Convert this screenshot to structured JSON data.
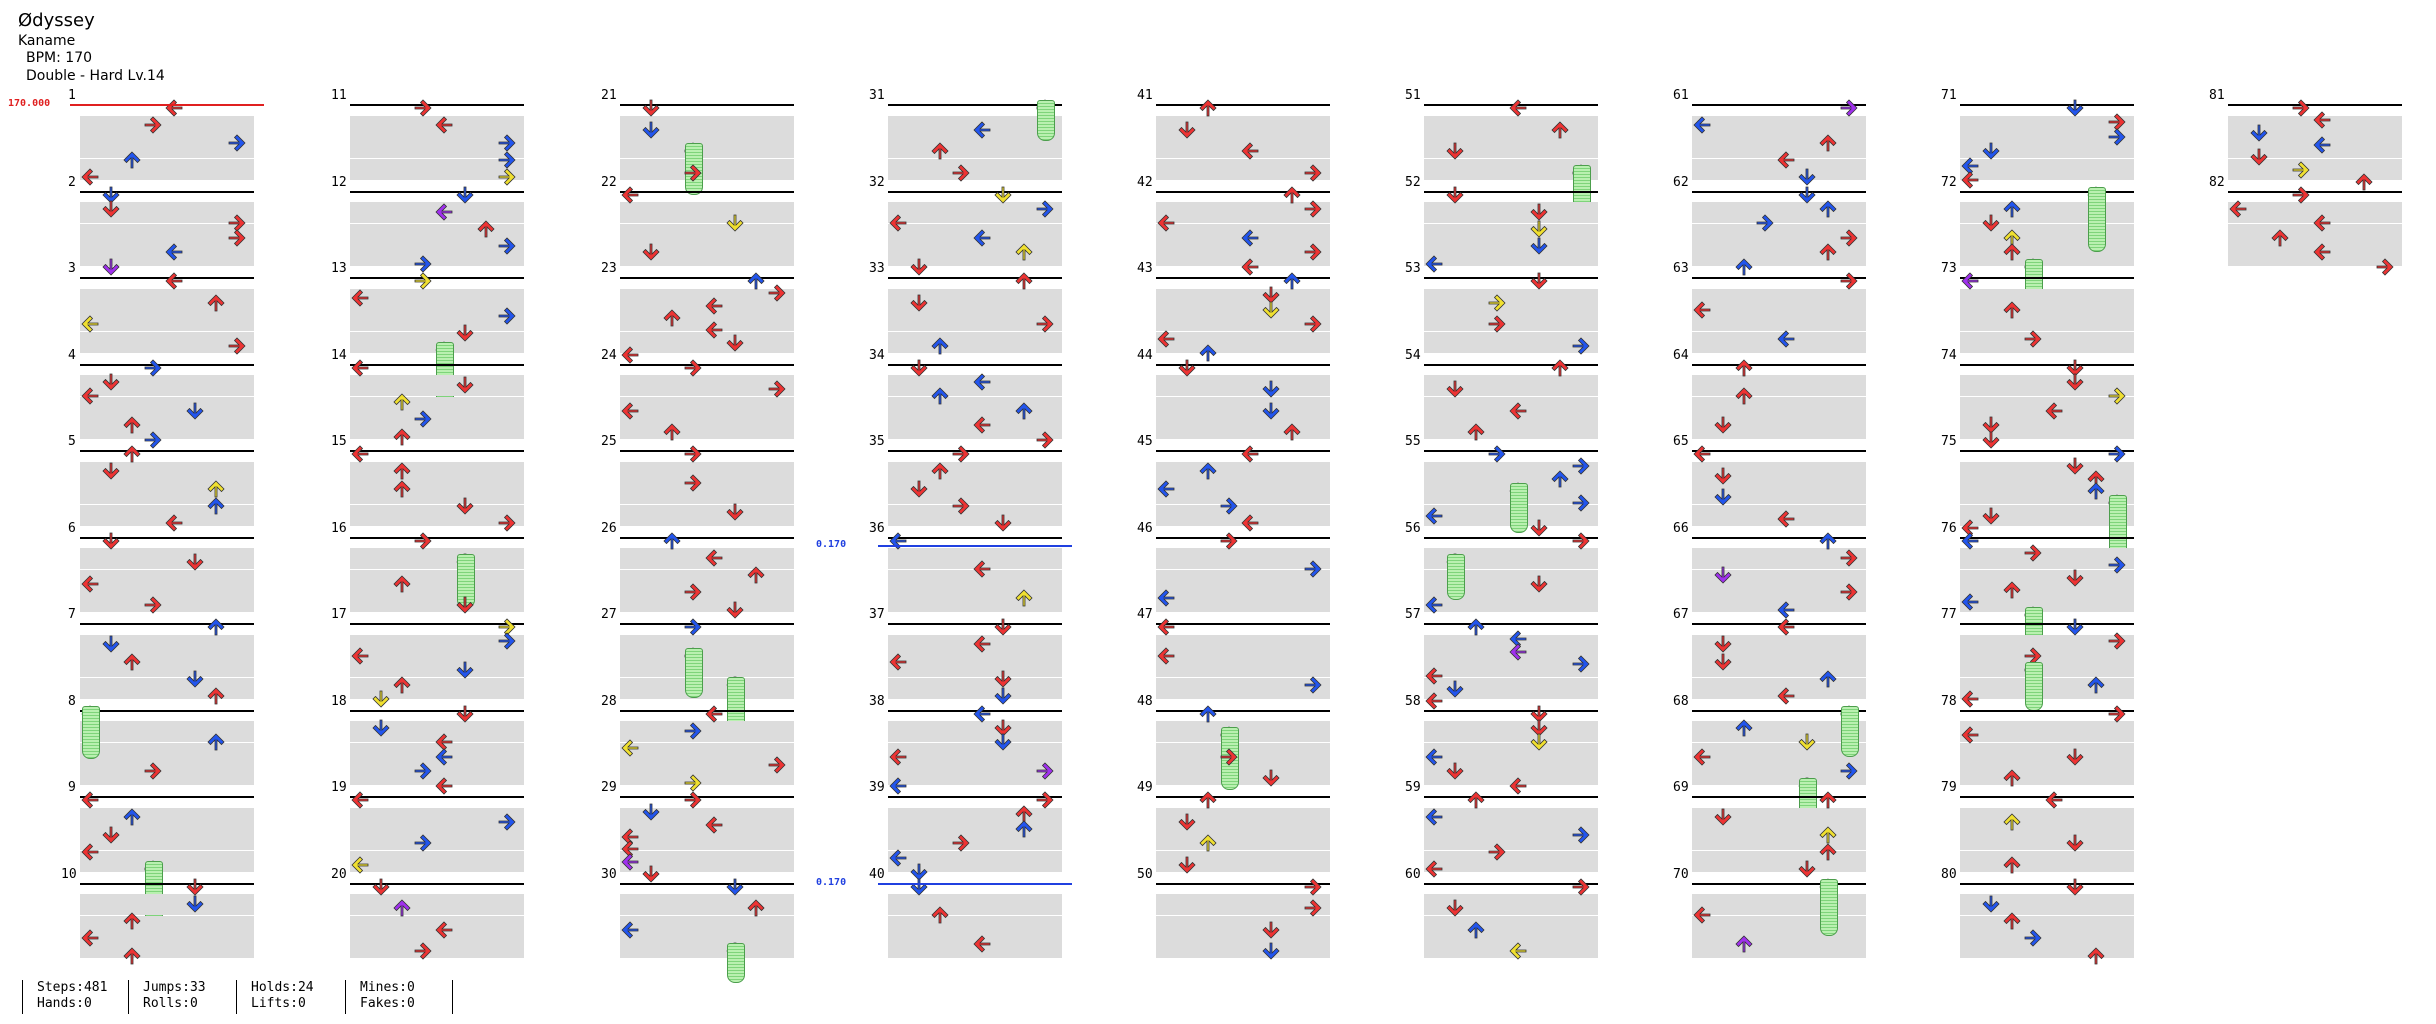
{
  "song": {
    "title": "Ødyssey",
    "artist": "Kaname",
    "bpm_label": "BPM: 170",
    "difficulty_label": "Double - Hard Lv.14"
  },
  "bpm_markers": [
    {
      "label": "170.000",
      "color": "#e02020"
    },
    {
      "label": "0.170",
      "color": "#2040e0"
    },
    {
      "label": "0.170",
      "color": "#2040e0"
    }
  ],
  "measure_numbers": [
    "1",
    "2",
    "3",
    "4",
    "5",
    "6",
    "7",
    "8",
    "9",
    "10",
    "11",
    "12",
    "13",
    "14",
    "15",
    "16",
    "17",
    "18",
    "19",
    "20",
    "21",
    "22",
    "23",
    "24",
    "25",
    "26",
    "27",
    "28",
    "29",
    "30",
    "31",
    "32",
    "33",
    "34",
    "35",
    "36",
    "37",
    "38",
    "39",
    "40",
    "41",
    "42",
    "43",
    "44",
    "45",
    "46",
    "47",
    "48",
    "49",
    "50",
    "51",
    "52",
    "53",
    "54",
    "55",
    "56",
    "57",
    "58",
    "59",
    "60",
    "61",
    "62",
    "63",
    "64",
    "65",
    "66",
    "67",
    "68",
    "69",
    "70",
    "71",
    "72",
    "73",
    "74",
    "75",
    "76",
    "77",
    "78",
    "79",
    "80",
    "81",
    "82"
  ],
  "colors": {
    "quarter": "#ee3333",
    "eighth": "#2255ee",
    "sixteenth": "#f0e030",
    "twelfth": "#a030ee",
    "hold": "#7ed47a"
  },
  "stats": {
    "steps": "Steps:481",
    "hands": "Hands:0",
    "jumps": "Jumps:33",
    "rolls": "Rolls:0",
    "holds": "Holds:24",
    "lifts": "Lifts:0",
    "mines": "Mines:0",
    "fakes": "Fakes:0"
  }
}
